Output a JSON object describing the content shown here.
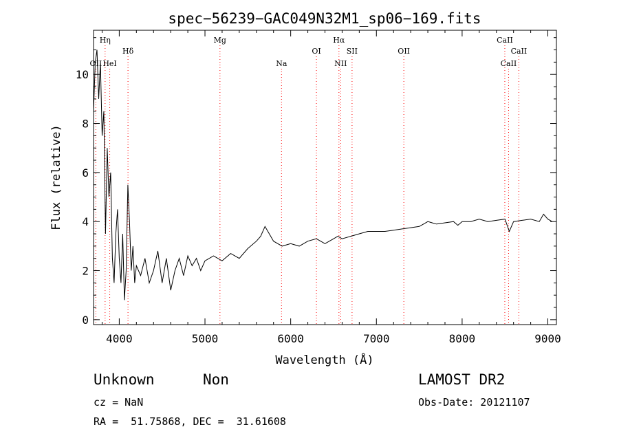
{
  "chart_data": {
    "type": "line",
    "title": "spec−56239−GAC049N32M1_sp06−169.fits",
    "xlabel": "Wavelength (Å)",
    "ylabel": "Flux (relative)",
    "xlim": [
      3700,
      9100
    ],
    "ylim": [
      -0.2,
      11.8
    ],
    "x_ticks": [
      4000,
      5000,
      6000,
      7000,
      8000,
      9000
    ],
    "y_ticks": [
      0,
      2,
      4,
      6,
      8,
      10
    ],
    "line_color": "#000000",
    "marker_color": "#ff0000",
    "spectrum": {
      "x": [
        3700,
        3720,
        3740,
        3760,
        3780,
        3800,
        3820,
        3840,
        3860,
        3880,
        3900,
        3920,
        3940,
        3960,
        3980,
        4000,
        4020,
        4040,
        4060,
        4080,
        4100,
        4120,
        4140,
        4160,
        4180,
        4200,
        4250,
        4300,
        4350,
        4400,
        4450,
        4500,
        4550,
        4600,
        4650,
        4700,
        4750,
        4800,
        4850,
        4900,
        4950,
        5000,
        5100,
        5200,
        5300,
        5400,
        5500,
        5600,
        5650,
        5700,
        5750,
        5800,
        5900,
        6000,
        6100,
        6200,
        6300,
        6400,
        6500,
        6550,
        6600,
        6700,
        6800,
        6900,
        7000,
        7100,
        7200,
        7300,
        7400,
        7500,
        7550,
        7600,
        7650,
        7700,
        7800,
        7900,
        7950,
        8000,
        8100,
        8200,
        8300,
        8400,
        8500,
        8550,
        8600,
        8700,
        8800,
        8900,
        8950,
        9000,
        9050
      ],
      "y": [
        8.5,
        10.5,
        11.0,
        9.0,
        10.5,
        7.5,
        8.5,
        3.5,
        7.0,
        5.0,
        6.0,
        2.5,
        1.5,
        3.5,
        4.5,
        2.5,
        1.5,
        3.5,
        0.8,
        2.0,
        5.5,
        4.0,
        2.0,
        3.0,
        1.5,
        2.2,
        1.8,
        2.5,
        1.5,
        2.0,
        2.8,
        1.5,
        2.5,
        1.2,
        2.0,
        2.5,
        1.8,
        2.6,
        2.2,
        2.5,
        2.0,
        2.4,
        2.6,
        2.4,
        2.7,
        2.5,
        2.9,
        3.2,
        3.4,
        3.8,
        3.5,
        3.2,
        3.0,
        3.1,
        3.0,
        3.2,
        3.3,
        3.1,
        3.3,
        3.4,
        3.3,
        3.4,
        3.5,
        3.6,
        3.6,
        3.6,
        3.65,
        3.7,
        3.75,
        3.8,
        3.9,
        4.0,
        3.95,
        3.9,
        3.95,
        4.0,
        3.85,
        4.0,
        4.0,
        4.1,
        4.0,
        4.05,
        4.1,
        3.6,
        4.0,
        4.05,
        4.1,
        4.0,
        4.3,
        4.1,
        4.0
      ]
    },
    "lines": [
      {
        "name": "OII",
        "x": 3727,
        "row": 3
      },
      {
        "name": "Hη",
        "x": 3835,
        "row": 1
      },
      {
        "name": "HeI",
        "x": 3889,
        "row": 3
      },
      {
        "name": "Hδ",
        "x": 4102,
        "row": 2
      },
      {
        "name": "Mg",
        "x": 5175,
        "row": 1
      },
      {
        "name": "Na",
        "x": 5893,
        "row": 3
      },
      {
        "name": "OI",
        "x": 6300,
        "row": 2
      },
      {
        "name": "Hα",
        "x": 6563,
        "row": 1
      },
      {
        "name": "NII",
        "x": 6583,
        "row": 3
      },
      {
        "name": "SII",
        "x": 6716,
        "row": 2
      },
      {
        "name": "OII",
        "x": 7320,
        "row": 2
      },
      {
        "name": "CaII",
        "x": 8498,
        "row": 1
      },
      {
        "name": "CaII",
        "x": 8542,
        "row": 3
      },
      {
        "name": "CaII",
        "x": 8662,
        "row": 2
      }
    ]
  },
  "info": {
    "class": "Unknown",
    "subclass": "Non",
    "survey": "LAMOST DR2",
    "cz": "cz = NaN",
    "obs_date": "Obs-Date: 20121107",
    "coords": "RA =  51.75868, DEC =  31.61608"
  }
}
